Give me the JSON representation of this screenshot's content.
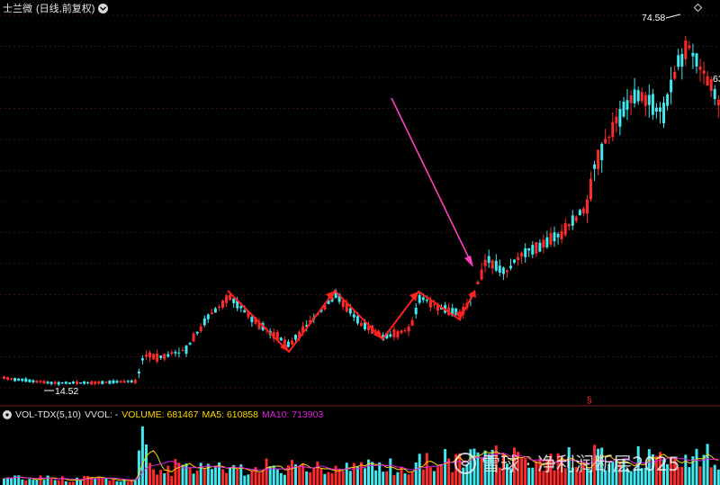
{
  "header": {
    "stock_name": "士兰微",
    "period": "(日线,前复权)"
  },
  "price_labels": {
    "high": "74.58",
    "low": "14.52",
    "right_edge": "63"
  },
  "volume_indicator": {
    "name": "VOL-TDX(5,10)",
    "vvol": "VVOL: -",
    "volume": "VOLUME: 681467",
    "ma5": "MA5: 610858",
    "ma10": "MA10: 713903"
  },
  "annotation": {
    "s_mark": "§"
  },
  "watermark": {
    "text": "雪球 · 净利润断层2025"
  },
  "colors": {
    "background": "#000000",
    "up_candle": "#ff2a2a",
    "down_candle": "#40e8f0",
    "grid": "#3a1010",
    "zigzag": "#ff2020",
    "pointer_arrow": "#ff3fbf",
    "volume_line": "#ffffff",
    "ma5_line": "#ffd800",
    "ma10_line": "#e020e0"
  }
}
